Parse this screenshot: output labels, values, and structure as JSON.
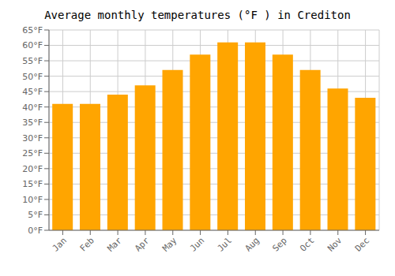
{
  "chart_data": {
    "type": "bar",
    "title": "Average monthly temperatures (°F ) in Crediton",
    "categories": [
      "Jan",
      "Feb",
      "Mar",
      "Apr",
      "May",
      "Jun",
      "Jul",
      "Aug",
      "Sep",
      "Oct",
      "Nov",
      "Dec"
    ],
    "values": [
      41,
      41,
      44,
      47,
      52,
      57,
      61,
      61,
      57,
      52,
      46,
      43
    ],
    "color": "#FFA500",
    "ylim": [
      0,
      65
    ],
    "yticks": [
      {
        "value": 0,
        "label": "0°F"
      },
      {
        "value": 5,
        "label": "5°F"
      },
      {
        "value": 10,
        "label": "10°F"
      },
      {
        "value": 15,
        "label": "15°F"
      },
      {
        "value": 20,
        "label": "20°F"
      },
      {
        "value": 25,
        "label": "25°F"
      },
      {
        "value": 30,
        "label": "30°F"
      },
      {
        "value": 35,
        "label": "35°F"
      },
      {
        "value": 40,
        "label": "40°F"
      },
      {
        "value": 45,
        "label": "45°F"
      },
      {
        "value": 50,
        "label": "50°F"
      },
      {
        "value": 55,
        "label": "55°F"
      },
      {
        "value": 60,
        "label": "60°F"
      },
      {
        "value": 65,
        "label": "65°F"
      }
    ],
    "grid": true
  }
}
